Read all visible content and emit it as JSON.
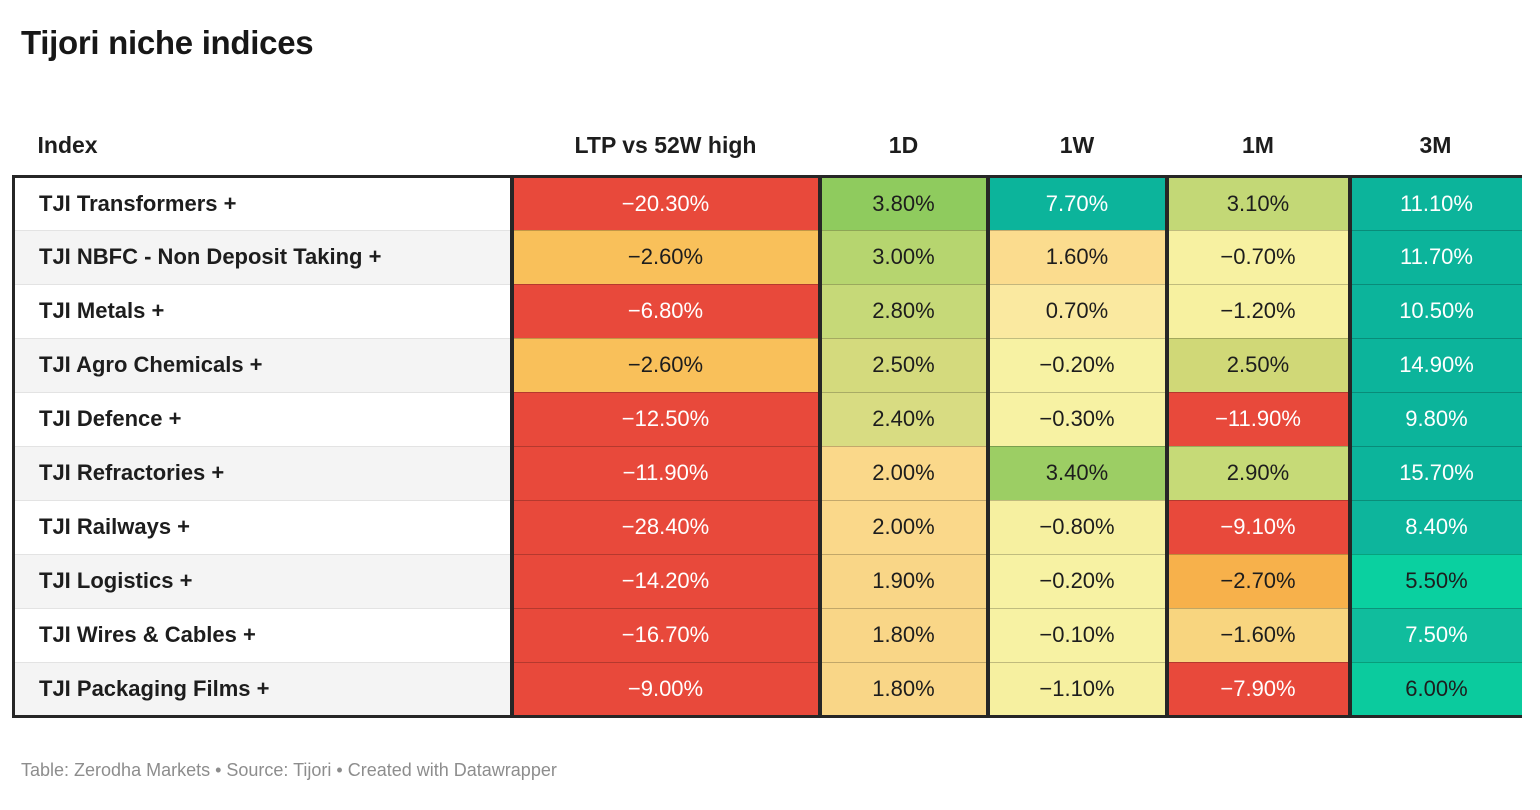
{
  "title": "Tijori niche indices",
  "footer": {
    "text": "Table: Zerodha Markets • Source: Tijori • Created with Datawrapper"
  },
  "colors": {
    "negative_strong": "#e8493b",
    "negative_mild": "#f9c05a",
    "neutral": "#f7f2a3",
    "positive_mild": "#c3d876",
    "positive_strong": "#0cb49b",
    "row_alt_background": "#f4f4f4",
    "table_border": "#262626",
    "footer_text": "#8d8d8d"
  },
  "table": {
    "columns": [
      {
        "label": "Index"
      },
      {
        "label": "LTP vs 52W high"
      },
      {
        "label": "1D"
      },
      {
        "label": "1W"
      },
      {
        "label": "1M"
      },
      {
        "label": "3M"
      }
    ],
    "rows": [
      {
        "index": "TJI Transformers +",
        "cells": [
          {
            "v": "−20.30%",
            "bg": "#e8493b",
            "fg": "#ffffff"
          },
          {
            "v": "3.80%",
            "bg": "#8fcb5e",
            "fg": "#1d1d1d"
          },
          {
            "v": "7.70%",
            "bg": "#0cb49b",
            "fg": "#ffffff"
          },
          {
            "v": "3.10%",
            "bg": "#c3d876",
            "fg": "#1d1d1d"
          },
          {
            "v": "11.10%",
            "bg": "#0cb49b",
            "fg": "#ffffff"
          }
        ]
      },
      {
        "index": "TJI NBFC - Non Deposit Taking +",
        "cells": [
          {
            "v": "−2.60%",
            "bg": "#f9c05a",
            "fg": "#1d1d1d"
          },
          {
            "v": "3.00%",
            "bg": "#b6d56f",
            "fg": "#1d1d1d"
          },
          {
            "v": "1.60%",
            "bg": "#fbdc8e",
            "fg": "#1d1d1d"
          },
          {
            "v": "−0.70%",
            "bg": "#f7f1a1",
            "fg": "#1d1d1d"
          },
          {
            "v": "11.70%",
            "bg": "#0cb49b",
            "fg": "#ffffff"
          }
        ]
      },
      {
        "index": "TJI Metals +",
        "cells": [
          {
            "v": "−6.80%",
            "bg": "#e8493b",
            "fg": "#ffffff"
          },
          {
            "v": "2.80%",
            "bg": "#c6d978",
            "fg": "#1d1d1d"
          },
          {
            "v": "0.70%",
            "bg": "#fae9a0",
            "fg": "#1d1d1d"
          },
          {
            "v": "−1.20%",
            "bg": "#f7f1a0",
            "fg": "#1d1d1d"
          },
          {
            "v": "10.50%",
            "bg": "#0cb49b",
            "fg": "#ffffff"
          }
        ]
      },
      {
        "index": "TJI Agro Chemicals +",
        "cells": [
          {
            "v": "−2.60%",
            "bg": "#f9c05a",
            "fg": "#1d1d1d"
          },
          {
            "v": "2.50%",
            "bg": "#d4da7d",
            "fg": "#1d1d1d"
          },
          {
            "v": "−0.20%",
            "bg": "#f7f2a3",
            "fg": "#1d1d1d"
          },
          {
            "v": "2.50%",
            "bg": "#d0d877",
            "fg": "#1d1d1d"
          },
          {
            "v": "14.90%",
            "bg": "#0cb49b",
            "fg": "#ffffff"
          }
        ]
      },
      {
        "index": "TJI Defence +",
        "cells": [
          {
            "v": "−12.50%",
            "bg": "#e8493b",
            "fg": "#ffffff"
          },
          {
            "v": "2.40%",
            "bg": "#d8dc82",
            "fg": "#1d1d1d"
          },
          {
            "v": "−0.30%",
            "bg": "#f7f2a3",
            "fg": "#1d1d1d"
          },
          {
            "v": "−11.90%",
            "bg": "#e8493b",
            "fg": "#ffffff"
          },
          {
            "v": "9.80%",
            "bg": "#0cb49b",
            "fg": "#ffffff"
          }
        ]
      },
      {
        "index": "TJI Refractories +",
        "cells": [
          {
            "v": "−11.90%",
            "bg": "#e8493b",
            "fg": "#ffffff"
          },
          {
            "v": "2.00%",
            "bg": "#fad88a",
            "fg": "#1d1d1d"
          },
          {
            "v": "3.40%",
            "bg": "#9cce64",
            "fg": "#1d1d1d"
          },
          {
            "v": "2.90%",
            "bg": "#c6da77",
            "fg": "#1d1d1d"
          },
          {
            "v": "15.70%",
            "bg": "#0cb49b",
            "fg": "#ffffff"
          }
        ]
      },
      {
        "index": "TJI Railways +",
        "cells": [
          {
            "v": "−28.40%",
            "bg": "#e8493b",
            "fg": "#ffffff"
          },
          {
            "v": "2.00%",
            "bg": "#fad88a",
            "fg": "#1d1d1d"
          },
          {
            "v": "−0.80%",
            "bg": "#f6f0a0",
            "fg": "#1d1d1d"
          },
          {
            "v": "−9.10%",
            "bg": "#e8493b",
            "fg": "#ffffff"
          },
          {
            "v": "8.40%",
            "bg": "#0db59c",
            "fg": "#ffffff"
          }
        ]
      },
      {
        "index": "TJI Logistics +",
        "cells": [
          {
            "v": "−14.20%",
            "bg": "#e8493b",
            "fg": "#ffffff"
          },
          {
            "v": "1.90%",
            "bg": "#f9d687",
            "fg": "#1d1d1d"
          },
          {
            "v": "−0.20%",
            "bg": "#f7f2a3",
            "fg": "#1d1d1d"
          },
          {
            "v": "−2.70%",
            "bg": "#f7b14b",
            "fg": "#1d1d1d"
          },
          {
            "v": "5.50%",
            "bg": "#0ad0a0",
            "fg": "#1d1d1d"
          }
        ]
      },
      {
        "index": "TJI Wires & Cables +",
        "cells": [
          {
            "v": "−16.70%",
            "bg": "#e8493b",
            "fg": "#ffffff"
          },
          {
            "v": "1.80%",
            "bg": "#f9d687",
            "fg": "#1d1d1d"
          },
          {
            "v": "−0.10%",
            "bg": "#f7f2a3",
            "fg": "#1d1d1d"
          },
          {
            "v": "−1.60%",
            "bg": "#f8d57f",
            "fg": "#1d1d1d"
          },
          {
            "v": "7.50%",
            "bg": "#10bd9d",
            "fg": "#ffffff"
          }
        ]
      },
      {
        "index": "TJI Packaging Films +",
        "cells": [
          {
            "v": "−9.00%",
            "bg": "#e8493b",
            "fg": "#ffffff"
          },
          {
            "v": "1.80%",
            "bg": "#f9d687",
            "fg": "#1d1d1d"
          },
          {
            "v": "−1.10%",
            "bg": "#f6f0a0",
            "fg": "#1d1d1d"
          },
          {
            "v": "−7.90%",
            "bg": "#e8493b",
            "fg": "#ffffff"
          },
          {
            "v": "6.00%",
            "bg": "#0bcb9e",
            "fg": "#1d1d1d"
          }
        ]
      }
    ]
  },
  "chart_data": {
    "type": "table",
    "title": "Tijori niche indices",
    "row_labels": [
      "TJI Transformers +",
      "TJI NBFC - Non Deposit Taking +",
      "TJI Metals +",
      "TJI Agro Chemicals +",
      "TJI Defence +",
      "TJI Refractories +",
      "TJI Railways +",
      "TJI Logistics +",
      "TJI Wires & Cables +",
      "TJI Packaging Films +"
    ],
    "series": [
      {
        "name": "LTP vs 52W high",
        "values": [
          -20.3,
          -2.6,
          -6.8,
          -2.6,
          -12.5,
          -11.9,
          -28.4,
          -14.2,
          -16.7,
          -9.0
        ]
      },
      {
        "name": "1D",
        "values": [
          3.8,
          3.0,
          2.8,
          2.5,
          2.4,
          2.0,
          2.0,
          1.9,
          1.8,
          1.8
        ]
      },
      {
        "name": "1W",
        "values": [
          7.7,
          1.6,
          0.7,
          -0.2,
          -0.3,
          3.4,
          -0.8,
          -0.2,
          -0.1,
          -1.1
        ]
      },
      {
        "name": "1M",
        "values": [
          3.1,
          -0.7,
          -1.2,
          2.5,
          -11.9,
          2.9,
          -9.1,
          -2.7,
          -1.6,
          -7.9
        ]
      },
      {
        "name": "3M",
        "values": [
          11.1,
          11.7,
          10.5,
          14.9,
          9.8,
          15.7,
          8.4,
          5.5,
          7.5,
          6.0
        ]
      }
    ],
    "units": "percent",
    "color_scale": "heatmap red (negative) → yellow (near zero) → green/teal (positive)",
    "source_line": "Table: Zerodha Markets • Source: Tijori • Created with Datawrapper"
  }
}
